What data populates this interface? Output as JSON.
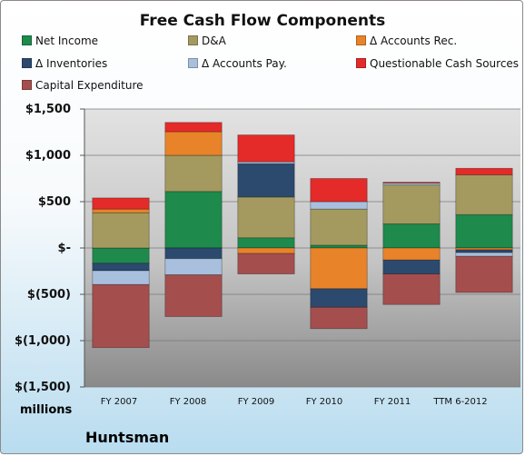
{
  "chart_data": {
    "type": "bar",
    "stacked": true,
    "title": "Free Cash Flow Components",
    "categories": [
      "FY 2007",
      "FY 2008",
      "FY 2009",
      "FY 2010",
      "FY 2011",
      "TTM 6-2012"
    ],
    "y_tick_labels": [
      "$1,500",
      "$1,000",
      "$500",
      "$-",
      "$(500)",
      "$(1,000)",
      "$(1,500)"
    ],
    "ylim": [
      -1500,
      1500
    ],
    "y_ticks": [
      1500,
      1000,
      500,
      0,
      -500,
      -1000,
      -1500
    ],
    "units_label": "millions",
    "grid": true,
    "legend_position": "top",
    "series": [
      {
        "name": "Net Income",
        "color": "#1e8a4c",
        "values": [
          -165,
          610,
          110,
          30,
          260,
          360
        ]
      },
      {
        "name": "D&A",
        "color": "#a49a5f",
        "values": [
          380,
          390,
          440,
          390,
          420,
          430
        ]
      },
      {
        "name": "Δ Accounts Rec.",
        "color": "#e8832a",
        "values": [
          40,
          255,
          -60,
          -440,
          -130,
          -20
        ]
      },
      {
        "name": "Δ Inventories",
        "color": "#2c4a6e",
        "values": [
          -80,
          -115,
          360,
          -200,
          -150,
          -30
        ]
      },
      {
        "name": "Δ Accounts Pay.",
        "color": "#a8bfdd",
        "values": [
          -150,
          -175,
          20,
          80,
          20,
          -40
        ]
      },
      {
        "name": "Questionable Cash Sources",
        "color": "#e52a2a",
        "values": [
          120,
          100,
          290,
          250,
          10,
          70
        ]
      },
      {
        "name": "Capital Expenditure",
        "color": "#a54e4e",
        "values": [
          -680,
          -450,
          -220,
          -230,
          -330,
          -390
        ]
      }
    ]
  },
  "footer": {
    "company": "Huntsman"
  }
}
